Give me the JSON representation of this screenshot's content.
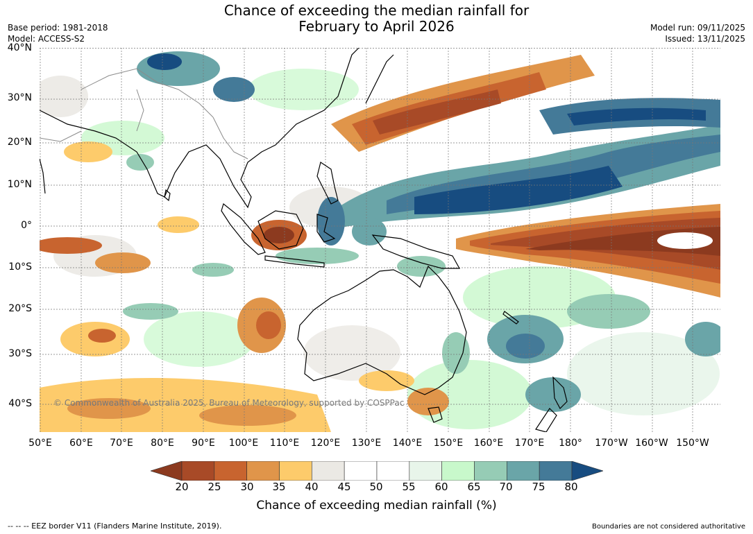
{
  "title": {
    "line1": "Chance of exceeding the median rainfall for",
    "line2": "February to April 2026"
  },
  "meta": {
    "base_period": "Base period: 1981-2018",
    "model": "Model: ACCESS-S2",
    "model_run": "Model run: 09/11/2025",
    "issued": "Issued: 13/11/2025"
  },
  "map": {
    "lat_labels": [
      "40°N",
      "30°N",
      "20°N",
      "10°N",
      "0°",
      "10°S",
      "20°S",
      "30°S",
      "40°S"
    ],
    "lon_labels": [
      "50°E",
      "60°E",
      "70°E",
      "80°E",
      "90°E",
      "100°E",
      "110°E",
      "120°E",
      "130°E",
      "140°E",
      "150°E",
      "160°E",
      "170°E",
      "180°",
      "170°W",
      "160°W",
      "150°W"
    ],
    "copyright": "© Commonwealth of Australia 2025, Bureau of Meteorology, supported by COSPPac"
  },
  "legend": {
    "ticks": [
      "20",
      "25",
      "30",
      "35",
      "40",
      "45",
      "50",
      "55",
      "60",
      "65",
      "70",
      "75",
      "80"
    ],
    "colors": [
      "#8c3a1f",
      "#a84a27",
      "#c8642f",
      "#e0954a",
      "#fdcb6b",
      "#ebe9e4",
      "#ffffff",
      "#ffffff",
      "#e8f5ea",
      "#c8f8cb",
      "#96ccb5",
      "#6aa5a8",
      "#447a98",
      "#174c80"
    ],
    "label": "Chance of exceeding median rainfall (%)"
  },
  "footer": {
    "eez_note": "--  --  -- EEZ border V11 (Flanders Marine Institute, 2019).",
    "boundary_note": "Boundaries are not considered authoritative"
  }
}
